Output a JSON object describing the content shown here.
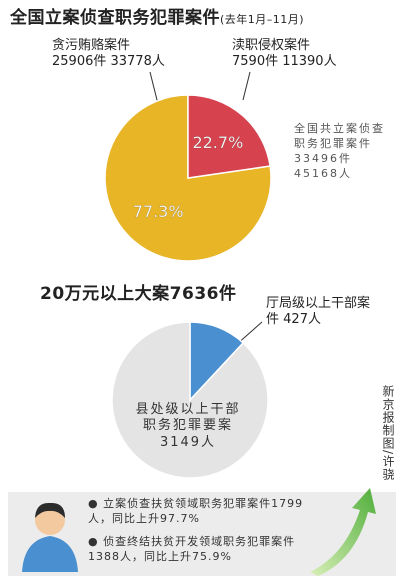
{
  "chart_data": [
    {
      "type": "pie",
      "title": "全国立案侦查职务犯罪案件",
      "subtitle": "(去年1月–11月)",
      "categories": [
        "贪污贿赂案件",
        "渎职侵权案件"
      ],
      "details": [
        "25906件 33778人",
        "7590件 11390人"
      ],
      "values": [
        77.3,
        22.7
      ],
      "value_labels": [
        "77.3%",
        "22.7%"
      ],
      "colors": [
        "#e8b526",
        "#d6434f"
      ],
      "annotation": "全国共立案侦查职务犯罪案件33496件45168人"
    },
    {
      "type": "pie",
      "title": "20万元以上大案7636件",
      "categories": [
        "厅局级以上干部案件",
        "县处级以上干部职务犯罪要案"
      ],
      "values": [
        427,
        3149
      ],
      "value_labels": [
        "427人",
        "3149人"
      ],
      "colors": [
        "#4a8fcf",
        "#e4e4e4"
      ]
    }
  ],
  "notes": [
    "立案侦查扶贫领域职务犯罪案件1799人，同比上升97.7%",
    "侦查终结扶贫开发领域职务犯罪案件1388人，同比上升75.9%"
  ],
  "credit": "新京报制图/许骁"
}
